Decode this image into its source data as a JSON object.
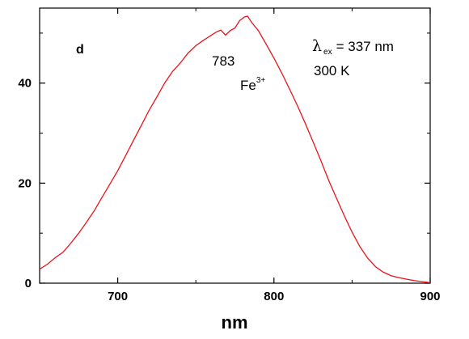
{
  "chart_data": {
    "type": "line",
    "xlabel": "nm",
    "ylabel": "",
    "xlim": [
      650,
      900
    ],
    "ylim": [
      0,
      55
    ],
    "x_ticks": [
      700,
      800,
      900
    ],
    "y_ticks": [
      0,
      20,
      40
    ],
    "grid": false,
    "legend": "none",
    "panel_label": "d",
    "series": [
      {
        "color": "#e8141c",
        "x": [
          650,
          655,
          660,
          665,
          670,
          675,
          680,
          685,
          690,
          695,
          700,
          705,
          710,
          715,
          720,
          725,
          730,
          735,
          740,
          745,
          750,
          755,
          760,
          763,
          766,
          769,
          772,
          775,
          778,
          781,
          783,
          786,
          790,
          795,
          800,
          805,
          810,
          815,
          820,
          825,
          830,
          835,
          840,
          845,
          850,
          855,
          860,
          865,
          870,
          875,
          880,
          885,
          890,
          895,
          900
        ],
        "y": [
          2.8,
          3.8,
          5.1,
          6.2,
          8.0,
          10.0,
          12.2,
          14.5,
          17.2,
          19.8,
          22.5,
          25.5,
          28.5,
          31.5,
          34.5,
          37.2,
          40.0,
          42.3,
          44.0,
          46.0,
          47.5,
          48.6,
          49.6,
          50.2,
          50.6,
          49.6,
          50.5,
          51.0,
          52.5,
          53.2,
          53.4,
          52.0,
          50.5,
          47.8,
          45.0,
          42.0,
          38.8,
          35.5,
          32.0,
          28.3,
          24.5,
          20.6,
          17.0,
          13.5,
          10.2,
          7.3,
          5.0,
          3.3,
          2.2,
          1.5,
          1.1,
          0.8,
          0.5,
          0.3,
          0.1
        ]
      }
    ],
    "annotations": {
      "peak_label": "783",
      "ion_base": "Fe",
      "ion_sup": "3+",
      "lambda_symbol": "λ",
      "lambda_sub": "ex",
      "lambda_value": "= 337 nm",
      "temperature": "300 K"
    }
  }
}
